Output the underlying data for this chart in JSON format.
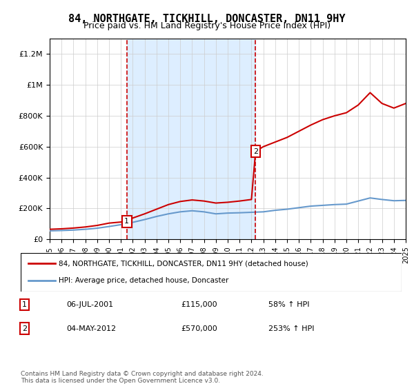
{
  "title": "84, NORTHGATE, TICKHILL, DONCASTER, DN11 9HY",
  "subtitle": "Price paid vs. HM Land Registry's House Price Index (HPI)",
  "ylabel": "",
  "xlabel": "",
  "xlim": [
    1995,
    2025
  ],
  "ylim": [
    0,
    1300000
  ],
  "yticks": [
    0,
    200000,
    400000,
    600000,
    800000,
    1000000,
    1200000
  ],
  "ytick_labels": [
    "£0",
    "£200K",
    "£400K",
    "£600K",
    "£800K",
    "£1M",
    "£1.2M"
  ],
  "xticks": [
    1995,
    1996,
    1997,
    1998,
    1999,
    2000,
    2001,
    2002,
    2003,
    2004,
    2005,
    2006,
    2007,
    2008,
    2009,
    2010,
    2011,
    2012,
    2013,
    2014,
    2015,
    2016,
    2017,
    2018,
    2019,
    2020,
    2021,
    2022,
    2023,
    2024,
    2025
  ],
  "background_color": "#ffffff",
  "plot_bg_color": "#ffffff",
  "shade_color": "#ddeeff",
  "shade_x1": 2001.5,
  "shade_x2": 2012.35,
  "grid_color": "#cccccc",
  "sale1_x": 2001.5,
  "sale1_y": 115000,
  "sale1_label": "1",
  "sale1_date": "06-JUL-2001",
  "sale1_price": "£115,000",
  "sale1_hpi": "58% ↑ HPI",
  "sale2_x": 2012.35,
  "sale2_y": 570000,
  "sale2_label": "2",
  "sale2_date": "04-MAY-2012",
  "sale2_price": "£570,000",
  "sale2_hpi": "253% ↑ HPI",
  "red_line_color": "#cc0000",
  "blue_line_color": "#6699cc",
  "legend_label_red": "84, NORTHGATE, TICKHILL, DONCASTER, DN11 9HY (detached house)",
  "legend_label_blue": "HPI: Average price, detached house, Doncaster",
  "footer": "Contains HM Land Registry data © Crown copyright and database right 2024.\nThis data is licensed under the Open Government Licence v3.0.",
  "hpi_data_x": [
    1995,
    1996,
    1997,
    1998,
    1999,
    2000,
    2001,
    2002,
    2003,
    2004,
    2005,
    2006,
    2007,
    2008,
    2009,
    2010,
    2011,
    2012,
    2013,
    2014,
    2015,
    2016,
    2017,
    2018,
    2019,
    2020,
    2021,
    2022,
    2023,
    2024,
    2025
  ],
  "hpi_data_y": [
    55000,
    57000,
    60000,
    65000,
    72000,
    83000,
    95000,
    110000,
    128000,
    148000,
    165000,
    178000,
    185000,
    178000,
    165000,
    170000,
    172000,
    175000,
    178000,
    188000,
    195000,
    205000,
    215000,
    220000,
    225000,
    228000,
    248000,
    268000,
    258000,
    250000,
    252000
  ],
  "property_data_x": [
    1995,
    1996,
    1997,
    1998,
    1999,
    2000,
    2001,
    2001.5,
    2002,
    2003,
    2004,
    2005,
    2006,
    2007,
    2008,
    2009,
    2010,
    2011,
    2012,
    2012.35,
    2013,
    2014,
    2015,
    2016,
    2017,
    2018,
    2019,
    2020,
    2021,
    2022,
    2023,
    2024,
    2025
  ],
  "property_data_y": [
    65000,
    68000,
    73000,
    80000,
    90000,
    105000,
    112000,
    115000,
    138000,
    165000,
    195000,
    225000,
    245000,
    255000,
    248000,
    235000,
    240000,
    248000,
    258000,
    570000,
    600000,
    630000,
    660000,
    700000,
    740000,
    775000,
    800000,
    820000,
    870000,
    950000,
    880000,
    850000,
    880000
  ]
}
